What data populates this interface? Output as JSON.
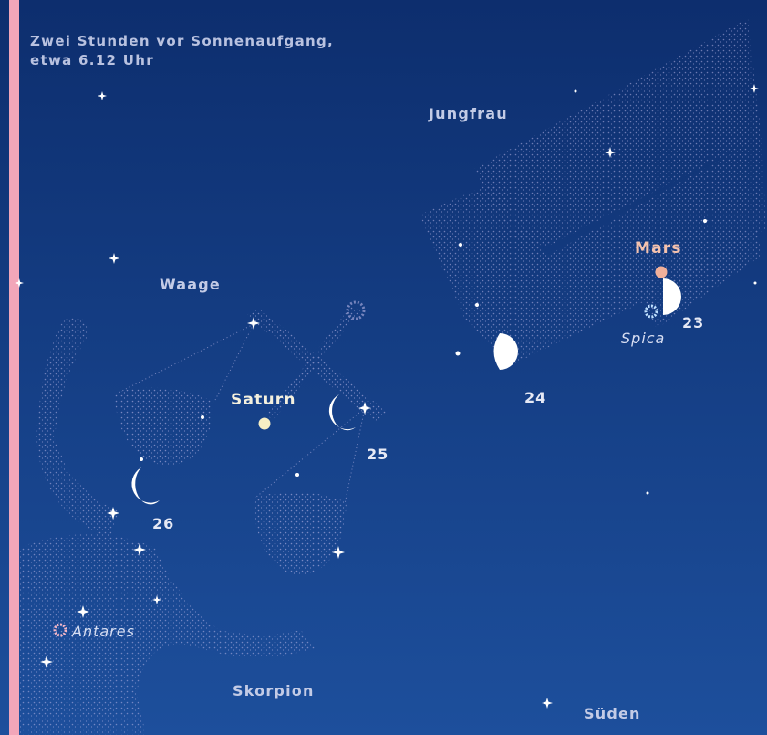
{
  "caption": {
    "lines": [
      "Zwei Stunden vor Sonnenaufgang,",
      "etwa 6.12 Uhr"
    ]
  },
  "constellations": [
    {
      "label": "Jungfrau"
    },
    {
      "label": "Waage"
    },
    {
      "label": "Skorpion"
    }
  ],
  "planets": [
    {
      "label": "Mars"
    },
    {
      "label": "Saturn"
    }
  ],
  "stars": [
    {
      "label": "Spica"
    },
    {
      "label": "Antares"
    }
  ],
  "moon_phases": [
    {
      "label": "23"
    },
    {
      "label": "24"
    },
    {
      "label": "25"
    },
    {
      "label": "26"
    }
  ],
  "direction": "Süden"
}
